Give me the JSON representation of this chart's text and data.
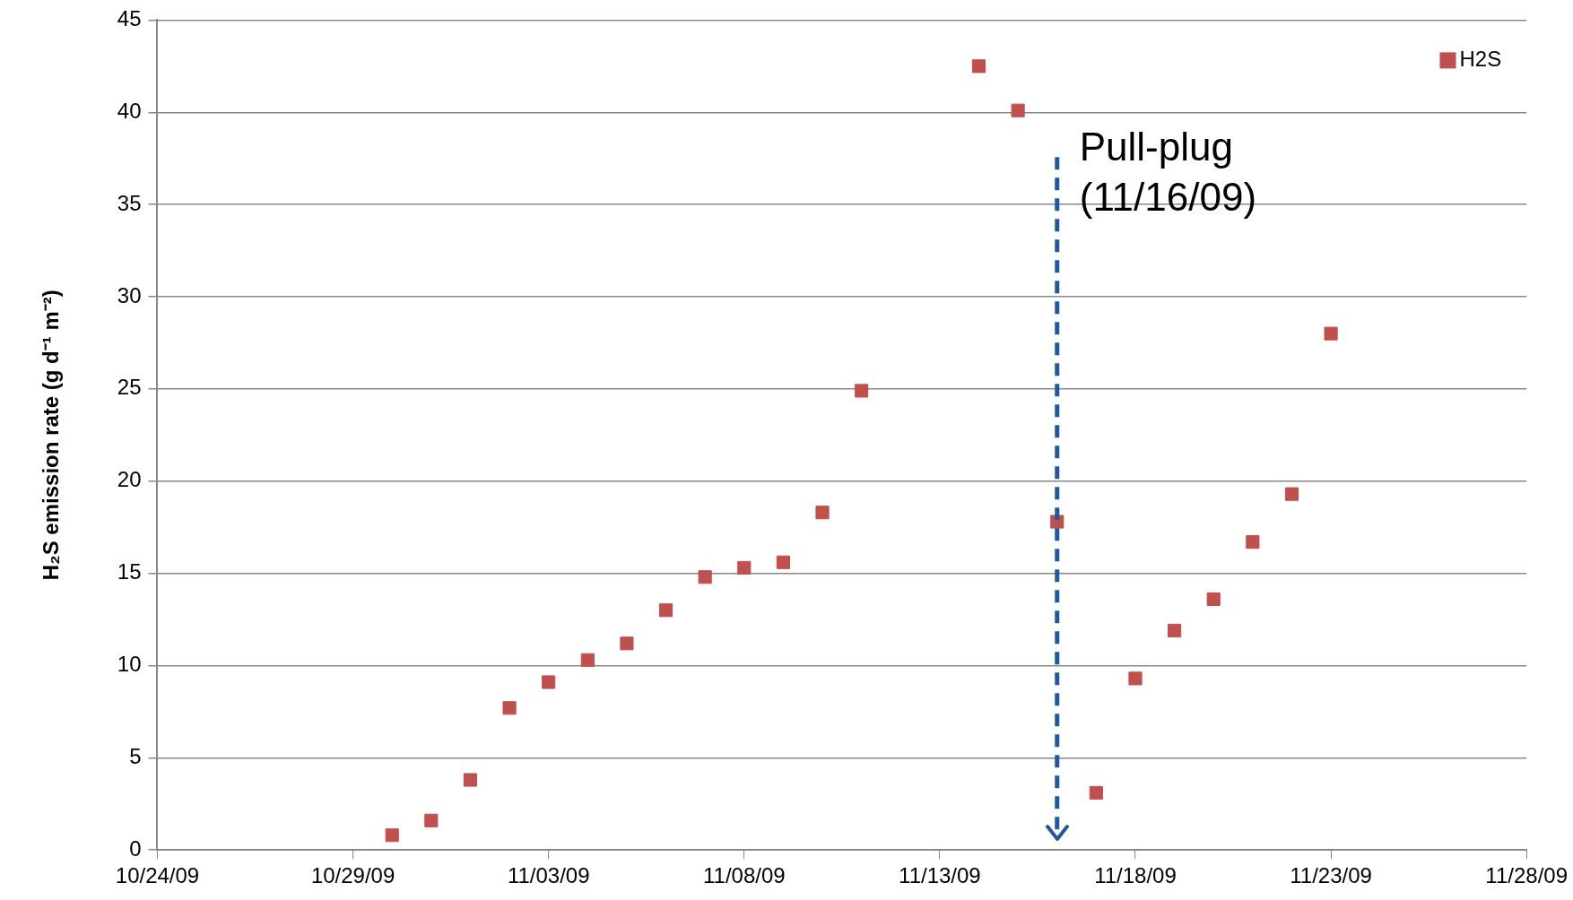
{
  "chart_data": {
    "type": "scatter",
    "ylabel": "H₂S emission rate (g d⁻¹ m⁻²)",
    "x": [
      "--10-30",
      "--10-31",
      "--11-01",
      "--11-02",
      "--11-03",
      "--11-04",
      "--11-05",
      "--11-06",
      "--11-07",
      "--11-08",
      "--11-09",
      "--11-10",
      "--11-11",
      "--11-14",
      "--11-15",
      "--11-16",
      "--11-17",
      "--11-18",
      "--11-19",
      "--11-20",
      "--11-21",
      "--11-22",
      "--11-23"
    ],
    "series": [
      {
        "name": "H2S",
        "color": "#c0504d",
        "values": [
          0.8,
          1.6,
          3.8,
          7.7,
          9.1,
          10.3,
          11.2,
          13.0,
          14.8,
          15.3,
          15.6,
          18.3,
          24.9,
          42.5,
          40.1,
          17.8,
          3.1,
          9.3,
          11.9,
          13.6,
          16.7,
          19.3,
          28.0
        ]
      }
    ],
    "xlim": [
      "--10-24",
      "--11-28"
    ],
    "xticks": [
      {
        "value": "--10-24",
        "label": "10/24/09"
      },
      {
        "value": "--10-29",
        "label": "10/29/09"
      },
      {
        "value": "--11-03",
        "label": "11/03/09"
      },
      {
        "value": "--11-08",
        "label": "11/08/09"
      },
      {
        "value": "--11-13",
        "label": "11/13/09"
      },
      {
        "value": "--11-18",
        "label": "11/18/09"
      },
      {
        "value": "--11-23",
        "label": "11/23/09"
      },
      {
        "value": "--11-28",
        "label": "11/28/09"
      }
    ],
    "ylim": [
      0,
      45
    ],
    "yticks": [
      0,
      5,
      10,
      15,
      20,
      25,
      30,
      35,
      40,
      45
    ],
    "grid": "y",
    "legend": "top right",
    "marker": "square",
    "ref_lines": [
      {
        "axis": "x",
        "value": "--11-16",
        "label": "Pull-plug (11/16/09)",
        "color": "#1f5aa0",
        "line_style": "dashed"
      }
    ]
  }
}
